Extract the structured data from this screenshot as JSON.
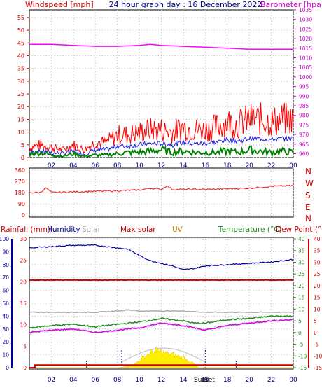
{
  "header": {
    "title": "24 hour graph day : 16 December 2022",
    "left_label": "Windspeed [mph]",
    "right_label": "Barometer [hpa]"
  },
  "colors": {
    "wind_gust": "#ff0000",
    "wind_avg": "#1e1ee6",
    "wind_low": "#008000",
    "barometer": "#ff00ff",
    "direction": "#e83030",
    "rain": "#cc0000",
    "humidity": "#000099",
    "solar": "#aaaaaa",
    "max_solar": "#cc0000",
    "uv": "#cc8800",
    "temperature": "#228b22",
    "dew_point": "#cc0000",
    "grid": "#b8b8b8"
  },
  "hour_labels": [
    "02",
    "04",
    "06",
    "08",
    "10",
    "12",
    "14",
    "16",
    "18",
    "20",
    "22",
    "00"
  ],
  "wind_panel": {
    "y_ticks": [
      "0",
      "5",
      "10",
      "15",
      "20",
      "25",
      "30",
      "35",
      "40",
      "45",
      "50",
      "55"
    ],
    "right_ticks": [
      "960",
      "965",
      "970",
      "975",
      "980",
      "985",
      "990",
      "995",
      "1000",
      "1005",
      "1010",
      "1015",
      "1020",
      "1025",
      "1030",
      "1035"
    ]
  },
  "direction_panel": {
    "y_ticks": [
      "0",
      "90",
      "180",
      "270",
      "360"
    ],
    "compass": [
      "N",
      "W",
      "S",
      "E",
      "N"
    ]
  },
  "bottom_panel": {
    "legend": {
      "rainfall": "Rainfall (mm)",
      "humidity": "Humidity",
      "solar": "Solar",
      "max_solar": "Max solar",
      "uv": "UV",
      "temperature": "Temperature (°C)",
      "dew_point": "Dew Point (°C)"
    },
    "rain_ticks": [
      "0",
      "5",
      "10",
      "15",
      "20",
      "25",
      "30"
    ],
    "humidity_ticks": [
      "0",
      "10",
      "20",
      "30",
      "40",
      "50",
      "60",
      "70",
      "80",
      "90",
      "100"
    ],
    "temp_ticks": [
      "-15",
      "-10",
      "-5",
      "0",
      "5",
      "10",
      "15",
      "20",
      "25",
      "30",
      "35",
      "40"
    ],
    "sunrise_label": "Sunr",
    "sunset_label": "Set"
  },
  "chart_data": [
    {
      "type": "line",
      "title": "24 hour graph day : 16 December 2022",
      "ylabel": "Windspeed [mph]",
      "y2label": "Barometer [hpa]",
      "x_unit": "hour",
      "xlim": [
        0,
        24
      ],
      "ylim": [
        0,
        58
      ],
      "y2lim": [
        958,
        1035
      ],
      "series": [
        {
          "axis": "left",
          "points": [
            [
              0,
              4
            ],
            [
              1,
              5
            ],
            [
              2,
              4
            ],
            [
              3,
              3
            ],
            [
              4,
              5
            ],
            [
              5,
              3
            ],
            [
              6,
              6
            ],
            [
              7,
              6
            ],
            [
              8,
              9
            ],
            [
              9,
              9
            ],
            [
              10,
              10
            ],
            [
              11,
              11
            ],
            [
              12,
              11
            ],
            [
              13,
              10
            ],
            [
              14,
              12
            ],
            [
              15,
              11
            ],
            [
              16,
              11
            ],
            [
              17,
              12
            ],
            [
              18,
              14
            ],
            [
              19,
              13
            ],
            [
              20,
              15
            ],
            [
              21,
              15
            ],
            [
              22,
              14
            ],
            [
              23,
              15
            ],
            [
              24,
              15
            ]
          ]
        },
        {
          "axis": "left",
          "points": [
            [
              0,
              1.5
            ],
            [
              1,
              2
            ],
            [
              2,
              1
            ],
            [
              3,
              0.5
            ],
            [
              4,
              1.5
            ],
            [
              5,
              0.5
            ],
            [
              6,
              1
            ],
            [
              7,
              1
            ],
            [
              8,
              1.5
            ],
            [
              9,
              2
            ],
            [
              10,
              2
            ],
            [
              11,
              2.5
            ],
            [
              12,
              3
            ],
            [
              13,
              2
            ],
            [
              14,
              2.5
            ],
            [
              15,
              2
            ],
            [
              16,
              2
            ],
            [
              17,
              2
            ],
            [
              18,
              2.5
            ],
            [
              19,
              2
            ],
            [
              20,
              3
            ],
            [
              21,
              2.5
            ],
            [
              22,
              2
            ],
            [
              23,
              2.5
            ],
            [
              24,
              2
            ]
          ]
        },
        {
          "axis": "right",
          "points": [
            [
              0,
              1017
            ],
            [
              2,
              1017
            ],
            [
              4,
              1016.5
            ],
            [
              6,
              1016
            ],
            [
              8,
              1016
            ],
            [
              10,
              1016.5
            ],
            [
              11,
              1017
            ],
            [
              12,
              1016.5
            ],
            [
              14,
              1016
            ],
            [
              16,
              1015.5
            ],
            [
              18,
              1015
            ],
            [
              20,
              1014.5
            ],
            [
              22,
              1014.5
            ],
            [
              24,
              1014.5
            ]
          ]
        }
      ]
    },
    {
      "type": "line",
      "ylabel": "Wind direction",
      "x_unit": "hour",
      "xlim": [
        0,
        24
      ],
      "ylim": [
        0,
        360
      ],
      "series": [
        {
          "points": [
            [
              0,
              180
            ],
            [
              1,
              180
            ],
            [
              1.5,
              220
            ],
            [
              2,
              180
            ],
            [
              4,
              185
            ],
            [
              6,
              190
            ],
            [
              8,
              195
            ],
            [
              10,
              200
            ],
            [
              11,
              215
            ],
            [
              12,
              205
            ],
            [
              12.5,
              235
            ],
            [
              13,
              205
            ],
            [
              16,
              205
            ],
            [
              18,
              210
            ],
            [
              20,
              215
            ],
            [
              22,
              230
            ],
            [
              24,
              235
            ]
          ]
        }
      ]
    },
    {
      "type": "line",
      "ylabel": "Rainfall (mm)",
      "y2label": "Temperature (°C)",
      "x_unit": "hour",
      "xlim": [
        0,
        24
      ],
      "ylim": [
        0,
        30
      ],
      "series": [
        {
          "name": "Humidity",
          "axis": "humidity",
          "points": [
            [
              0,
              93
            ],
            [
              2,
              94
            ],
            [
              4,
              95
            ],
            [
              6,
              95
            ],
            [
              8,
              93
            ],
            [
              9,
              92
            ],
            [
              10,
              87
            ],
            [
              11,
              83
            ],
            [
              12,
              81
            ],
            [
              13,
              79
            ],
            [
              14,
              76
            ],
            [
              15,
              77
            ],
            [
              16,
              79
            ],
            [
              18,
              80
            ],
            [
              20,
              81
            ],
            [
              22,
              82
            ],
            [
              24,
              84
            ]
          ]
        },
        {
          "name": "Temperature (°C)",
          "axis": "temp",
          "points": [
            [
              0,
              2
            ],
            [
              2,
              3
            ],
            [
              4,
              3.5
            ],
            [
              6,
              2.5
            ],
            [
              8,
              3.5
            ],
            [
              10,
              4.5
            ],
            [
              12,
              6
            ],
            [
              14,
              5
            ],
            [
              15,
              4
            ],
            [
              16,
              4
            ],
            [
              18,
              5.5
            ],
            [
              20,
              6
            ],
            [
              22,
              7
            ],
            [
              24,
              7
            ]
          ]
        },
        {
          "name": "Dew Point (°C)",
          "axis": "temp",
          "points": [
            [
              0,
              0
            ],
            [
              2,
              1
            ],
            [
              4,
              1.5
            ],
            [
              6,
              0
            ],
            [
              8,
              1
            ],
            [
              10,
              2
            ],
            [
              12,
              4
            ],
            [
              14,
              3
            ],
            [
              15,
              2
            ],
            [
              16,
              1
            ],
            [
              18,
              3
            ],
            [
              20,
              4
            ],
            [
              22,
              5
            ],
            [
              24,
              5.5
            ]
          ]
        },
        {
          "name": "Solar",
          "axis": "solar",
          "points": [
            [
              0,
              43
            ],
            [
              6,
              43
            ],
            [
              8,
              44
            ],
            [
              9,
              45
            ],
            [
              10,
              44
            ],
            [
              12,
              44
            ],
            [
              14,
              44
            ],
            [
              16,
              43
            ],
            [
              18,
              43
            ],
            [
              20,
              43
            ],
            [
              22,
              43
            ],
            [
              24,
              43
            ]
          ]
        },
        {
          "name": "Max solar",
          "axis": "solar",
          "points": [
            [
              0,
              68
            ],
            [
              24,
              68
            ]
          ]
        },
        {
          "name": "UV",
          "axis": "solar",
          "points": [
            [
              0,
              0
            ],
            [
              8.3,
              0
            ],
            [
              9.5,
              2
            ],
            [
              10.5,
              8
            ],
            [
              11.5,
              12
            ],
            [
              12.3,
              10
            ],
            [
              13,
              9
            ],
            [
              14,
              7
            ],
            [
              14.9,
              3
            ],
            [
              15.4,
              0
            ],
            [
              24,
              0
            ]
          ]
        },
        {
          "name": "Rainfall (mm)",
          "axis": "rain",
          "points": [
            [
              0,
              0
            ],
            [
              0.5,
              0
            ],
            [
              0.5,
              0.6
            ],
            [
              24,
              0.6
            ]
          ]
        }
      ],
      "sunrise_hour": 8.4,
      "sunset_hour": 16.0
    }
  ]
}
